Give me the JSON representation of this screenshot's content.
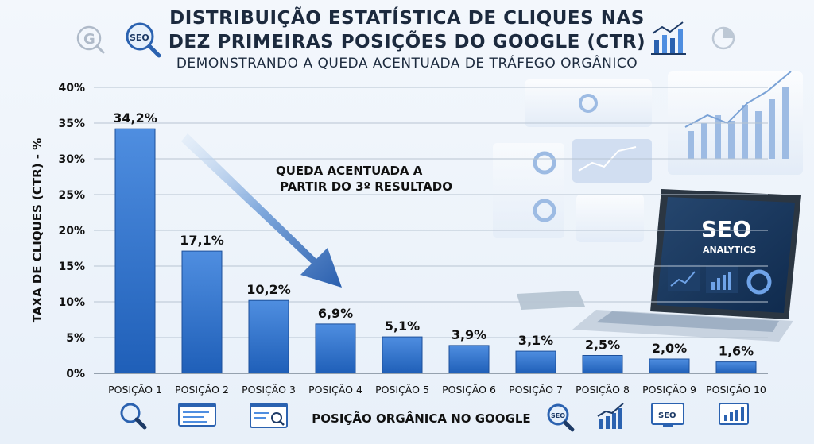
{
  "header": {
    "title_line1": "DISTRIBUIÇÃO ESTATÍSTICA DE CLIQUES NAS",
    "title_line2": "DEZ PRIMEIRAS POSIÇÕES DO GOOGLE (CTR)",
    "subtitle": "DEMONSTRANDO A QUEDA ACENTUADA DE TRÁFEGO ORGÂNICO"
  },
  "decor": {
    "laptop_text_1": "SEO",
    "laptop_text_2": "ANALYTICS",
    "seo_badge": "SEO"
  },
  "colors": {
    "bar_top": "#4f8ee0",
    "bar_bottom": "#1f5fb8",
    "text": "#111111",
    "arrow": "#2f67b7"
  },
  "icons": {
    "top_left": [
      "google-icon",
      "seo-search-icon"
    ],
    "top_right": [
      "bar-chart-icon",
      "pie-chart-icon"
    ],
    "bottom": [
      "magnifier-icon",
      "search-results-icon",
      "search-page-icon",
      "seo-magnifier-icon",
      "growth-chart-icon",
      "seo-screen-icon",
      "analytics-screen-icon"
    ]
  },
  "chart_data": {
    "type": "bar",
    "title": "DISTRIBUIÇÃO ESTATÍSTICA DE CLIQUES NAS DEZ PRIMEIRAS POSIÇÕES DO GOOGLE (CTR)",
    "subtitle": "DEMONSTRANDO A QUEDA ACENTUADA DE TRÁFEGO ORGÂNICO",
    "xlabel": "POSIÇÃO ORGÂNICA NO GOOGLE",
    "ylabel": "TAXA DE CLIQUES (CTR) - %",
    "ylim": [
      0,
      40
    ],
    "yticks": [
      0,
      5,
      10,
      15,
      20,
      25,
      30,
      35,
      40
    ],
    "ytick_labels": [
      "0%",
      "5%",
      "10%",
      "15%",
      "20%",
      "25%",
      "30%",
      "35%",
      "40%"
    ],
    "categories": [
      "POSIÇÃO 1",
      "POSIÇÃO 2",
      "POSIÇÃO 3",
      "POSIÇÃO 4",
      "POSIÇÃO 5",
      "POSIÇÃO 6",
      "POSIÇÃO 7",
      "POSIÇÃO 8",
      "POSIÇÃO 9",
      "POSIÇÃO 10"
    ],
    "values": [
      34.2,
      17.1,
      10.2,
      6.9,
      5.1,
      3.9,
      3.1,
      2.5,
      2.0,
      1.6
    ],
    "data_labels": [
      "34,2%",
      "17,1%",
      "10,2%",
      "6,9%",
      "5,1%",
      "3,9%",
      "3,1%",
      "2,5%",
      "2,0%",
      "1,6%"
    ],
    "annotation": {
      "line1": "QUEDA ACENTUADA A",
      "line2": "PARTIR DO 3º RESULTADO"
    },
    "grid": true,
    "legend": "none"
  }
}
